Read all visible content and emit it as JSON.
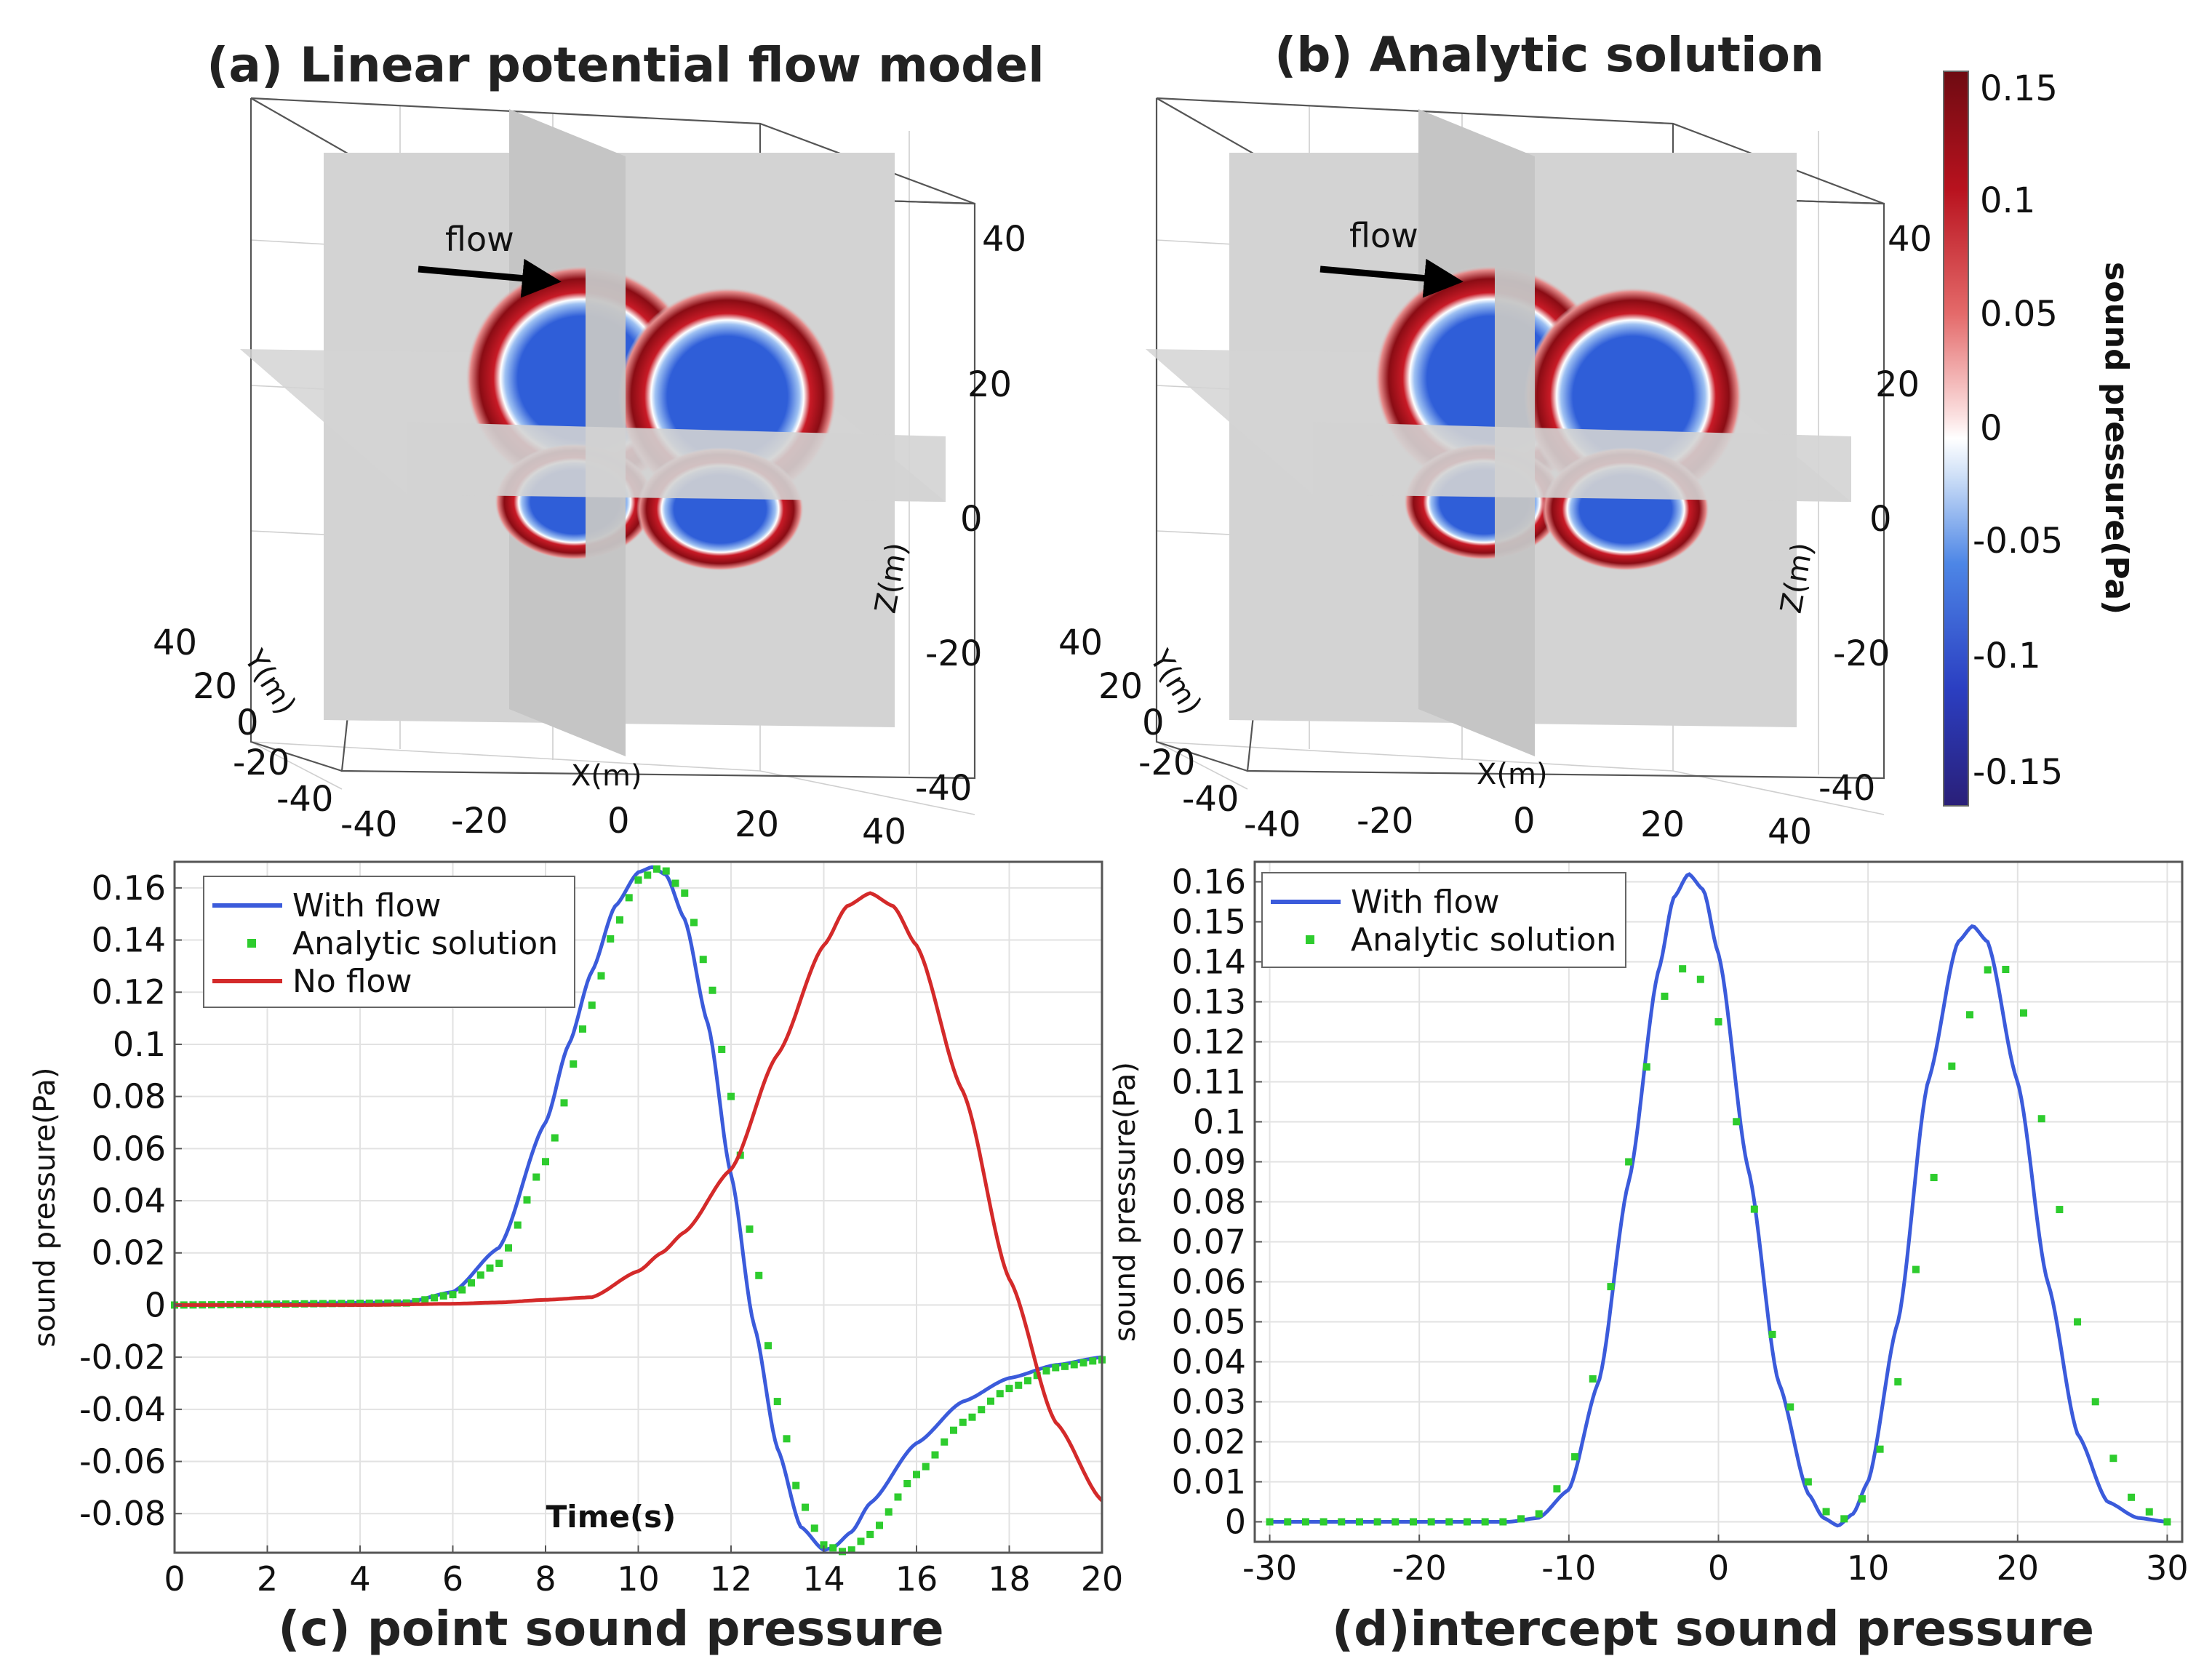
{
  "figure": {
    "panel_a_title": "(a) Linear potential flow model",
    "panel_b_title": "(b) Analytic solution",
    "panel_c_title": "(c) point sound pressure",
    "panel_d_title": "(d)intercept sound pressure",
    "flow_label": "flow",
    "axis_x_3d": "X(m)",
    "axis_y_3d": "Y(m)",
    "axis_z_3d": "Z(m)"
  },
  "colorbar": {
    "label": "sound pressure(Pa)",
    "ticks": [
      "0.15",
      "0.1",
      "0.05",
      "0",
      "-0.05",
      "-0.1",
      "-0.15"
    ],
    "range": [
      -0.15,
      0.15
    ],
    "colors": [
      "#3b2a8c",
      "#3a62d8",
      "#9fc0f0",
      "#ffffff",
      "#f2a8a8",
      "#d52a2a",
      "#7a0d14"
    ]
  },
  "plot3d_ticks": {
    "z": [
      "40",
      "20",
      "0",
      "-20",
      "-40"
    ],
    "y": [
      "40",
      "20",
      "0",
      "-20",
      "-40"
    ],
    "x": [
      "-40",
      "-20",
      "0",
      "20",
      "40"
    ]
  },
  "chart_data": [
    {
      "id": "c",
      "type": "line",
      "title": "(c) point sound pressure",
      "xlabel": "Time(s)",
      "ylabel": "sound pressure(Pa)",
      "xlim": [
        0,
        20
      ],
      "ylim": [
        -0.095,
        0.17
      ],
      "xticks": [
        0,
        2,
        4,
        6,
        8,
        10,
        12,
        14,
        16,
        18,
        20
      ],
      "yticks": [
        -0.08,
        -0.06,
        -0.04,
        -0.02,
        0,
        0.02,
        0.04,
        0.06,
        0.08,
        0.1,
        0.12,
        0.14,
        0.16
      ],
      "ytick_labels": [
        "-0.08",
        "-0.06",
        "-0.04",
        "-0.02",
        "0",
        "0.02",
        "0.04",
        "0.06",
        "0.08",
        "0.1",
        "0.12",
        "0.14",
        "0.16"
      ],
      "grid": true,
      "legend": "top-left",
      "series": [
        {
          "name": "With flow",
          "color": "#3b5bdb",
          "style": "solid",
          "x": [
            0,
            5,
            6,
            7,
            8,
            8.5,
            9,
            9.5,
            10,
            10.3,
            10.6,
            11,
            11.5,
            12,
            12.5,
            13,
            13.5,
            14,
            14.2,
            14.6,
            15,
            16,
            17,
            18,
            19,
            20
          ],
          "y": [
            0,
            0.001,
            0.005,
            0.022,
            0.07,
            0.1,
            0.128,
            0.153,
            0.166,
            0.168,
            0.165,
            0.148,
            0.108,
            0.05,
            -0.008,
            -0.055,
            -0.085,
            -0.094,
            -0.093,
            -0.087,
            -0.076,
            -0.053,
            -0.037,
            -0.028,
            -0.023,
            -0.02
          ]
        },
        {
          "name": "Analytic solution",
          "color": "#2ecc2e",
          "style": "dotted",
          "x": [
            0,
            5,
            6,
            7,
            8,
            9,
            9.5,
            10,
            10.5,
            11,
            11.5,
            12,
            12.5,
            13,
            13.5,
            14,
            14.5,
            15,
            16,
            17,
            18,
            19,
            20
          ],
          "y": [
            0,
            0.0008,
            0.004,
            0.016,
            0.055,
            0.115,
            0.145,
            0.163,
            0.168,
            0.158,
            0.128,
            0.08,
            0.02,
            -0.037,
            -0.075,
            -0.092,
            -0.095,
            -0.088,
            -0.065,
            -0.045,
            -0.032,
            -0.024,
            -0.021
          ]
        },
        {
          "name": "No flow",
          "color": "#d42a2a",
          "style": "solid",
          "x": [
            0,
            4,
            6,
            7,
            8,
            9,
            10,
            10.5,
            11,
            12,
            13,
            14,
            14.5,
            15,
            15.5,
            16,
            17,
            18,
            19,
            20
          ],
          "y": [
            0,
            0,
            0.0005,
            0.001,
            0.002,
            0.003,
            0.013,
            0.02,
            0.028,
            0.052,
            0.096,
            0.138,
            0.153,
            0.158,
            0.153,
            0.138,
            0.082,
            0.01,
            -0.045,
            -0.075
          ]
        }
      ]
    },
    {
      "id": "d",
      "type": "line",
      "title": "(d)intercept sound pressure",
      "xlabel": "",
      "ylabel": "sound pressure(Pa)",
      "xlim": [
        -31,
        31
      ],
      "ylim": [
        -0.005,
        0.165
      ],
      "xticks": [
        -30,
        -20,
        -10,
        0,
        10,
        20,
        30
      ],
      "yticks": [
        0,
        0.01,
        0.02,
        0.03,
        0.04,
        0.05,
        0.06,
        0.07,
        0.08,
        0.09,
        0.1,
        0.11,
        0.12,
        0.13,
        0.14,
        0.15,
        0.16
      ],
      "ytick_labels": [
        "0",
        "0.01",
        "0.02",
        "0.03",
        "0.04",
        "0.05",
        "0.06",
        "0.07",
        "0.08",
        "0.09",
        "0.1",
        "0.11",
        "0.12",
        "0.13",
        "0.14",
        "0.15",
        "0.16"
      ],
      "grid": true,
      "legend": "top-left",
      "series": [
        {
          "name": "With flow",
          "color": "#3b5bdb",
          "style": "solid",
          "x": [
            -30,
            -14,
            -12,
            -10,
            -8,
            -6,
            -4,
            -3,
            -2,
            -1,
            0,
            2,
            4,
            6,
            7,
            8,
            9,
            10,
            12,
            14,
            16,
            17,
            18,
            20,
            22,
            24,
            26,
            28,
            30
          ],
          "y": [
            0,
            0,
            0.001,
            0.008,
            0.035,
            0.085,
            0.138,
            0.156,
            0.162,
            0.158,
            0.142,
            0.088,
            0.035,
            0.007,
            0.001,
            -0.001,
            0.002,
            0.01,
            0.05,
            0.11,
            0.145,
            0.149,
            0.145,
            0.11,
            0.06,
            0.022,
            0.005,
            0.001,
            0
          ]
        },
        {
          "name": "Analytic solution",
          "color": "#2ecc2e",
          "style": "dotted",
          "x": [
            -30,
            -14,
            -12,
            -10,
            -8,
            -6,
            -4,
            -3,
            -2,
            -1,
            0,
            2,
            4,
            6,
            7,
            8,
            9,
            10,
            12,
            14,
            16,
            18,
            19,
            20,
            22,
            24,
            26,
            28,
            30
          ],
          "y": [
            0,
            0,
            0.002,
            0.012,
            0.04,
            0.09,
            0.128,
            0.137,
            0.139,
            0.135,
            0.125,
            0.085,
            0.04,
            0.01,
            0.003,
            0,
            0.002,
            0.008,
            0.035,
            0.08,
            0.12,
            0.138,
            0.139,
            0.133,
            0.095,
            0.05,
            0.018,
            0.004,
            0
          ]
        }
      ]
    }
  ]
}
